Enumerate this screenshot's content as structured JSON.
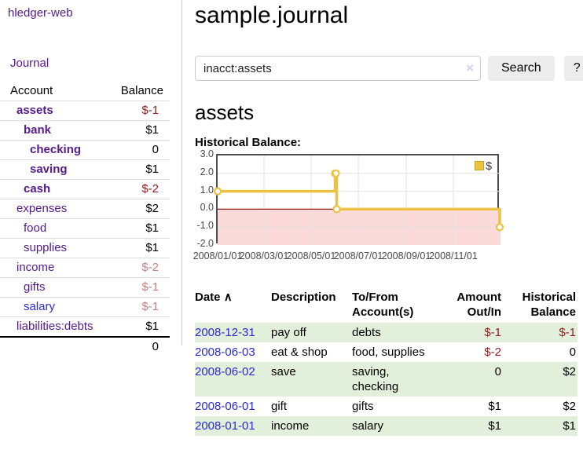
{
  "app": {
    "title": "hledger-web",
    "nav_journal": "Journal"
  },
  "colors": {
    "accent_purple": "#551a8b",
    "link_blue": "#2a2ad6",
    "negative_strong": "#8f1f1f",
    "negative_muted": "#c08484",
    "stripe_green": "#e2efda",
    "chart_gold": "#edc240"
  },
  "sidebar": {
    "columns": {
      "account": "Account",
      "balance": "Balance"
    },
    "accounts": [
      {
        "name": "assets",
        "balance": "$-1"
      },
      {
        "name": "bank",
        "balance": "$1"
      },
      {
        "name": "checking",
        "balance": "0"
      },
      {
        "name": "saving",
        "balance": "$1"
      },
      {
        "name": "cash",
        "balance": "$-2"
      },
      {
        "name": "expenses",
        "balance": "$2"
      },
      {
        "name": "food",
        "balance": "$1"
      },
      {
        "name": "supplies",
        "balance": "$1"
      },
      {
        "name": "income",
        "balance": "$-2"
      },
      {
        "name": "gifts",
        "balance": "$-1"
      },
      {
        "name": "salary",
        "balance": "$-1"
      },
      {
        "name": "liabilities:debts",
        "balance": "$1"
      }
    ],
    "total": "0"
  },
  "main": {
    "title": "sample.journal",
    "search": {
      "value": "inacct:assets",
      "clear_icon": "×",
      "button": "Search",
      "help": "?"
    },
    "account_heading": "assets",
    "chart_label": "Historical Balance:"
  },
  "chart_data": {
    "type": "line",
    "step": true,
    "title": "Historical Balance",
    "legend": "$",
    "legend_position": "top-right",
    "grid": true,
    "ylim": [
      -2,
      3
    ],
    "x_range": [
      "2008-01-01",
      "2009-01-01"
    ],
    "y_ticks": [
      "3.0",
      "2.0",
      "1.0",
      "0.0",
      "-1.0",
      "-2.0"
    ],
    "x_ticks": [
      "2008/01/01",
      "2008/03/01",
      "2008/05/01",
      "2008/07/01",
      "2008/09/01",
      "2008/11/01"
    ],
    "series": [
      {
        "name": "$",
        "color": "#edc240",
        "points": [
          [
            "2008-01-01",
            1
          ],
          [
            "2008-06-01",
            2
          ],
          [
            "2008-06-02",
            2
          ],
          [
            "2008-06-03",
            0
          ],
          [
            "2008-12-31",
            -1
          ]
        ]
      }
    ],
    "grid_color": "#e2e2e2",
    "zero_line_color": "#8c1a1a",
    "negative_region_color": "#fbdada"
  },
  "table": {
    "sort_icon": "∧",
    "headers": [
      {
        "l1": "Date",
        "l2": ""
      },
      {
        "l1": "Description",
        "l2": ""
      },
      {
        "l1": "To/From",
        "l2": "Account(s)"
      },
      {
        "l1": "Amount",
        "l2": "Out/In"
      },
      {
        "l1": "Historical",
        "l2": "Balance"
      }
    ],
    "rows": [
      {
        "date": "2008-12-31",
        "description": "pay off",
        "accounts": "debts",
        "amount": "$-1",
        "balance": "$-1"
      },
      {
        "date": "2008-06-03",
        "description": "eat & shop",
        "accounts": "food, supplies",
        "amount": "$-2",
        "balance": "0"
      },
      {
        "date": "2008-06-02",
        "description": "save",
        "accounts": "saving, checking",
        "amount": "0",
        "balance": "$2"
      },
      {
        "date": "2008-06-01",
        "description": "gift",
        "accounts": "gifts",
        "amount": "$1",
        "balance": "$2"
      },
      {
        "date": "2008-01-01",
        "description": "income",
        "accounts": "salary",
        "amount": "$1",
        "balance": "$1"
      }
    ]
  }
}
